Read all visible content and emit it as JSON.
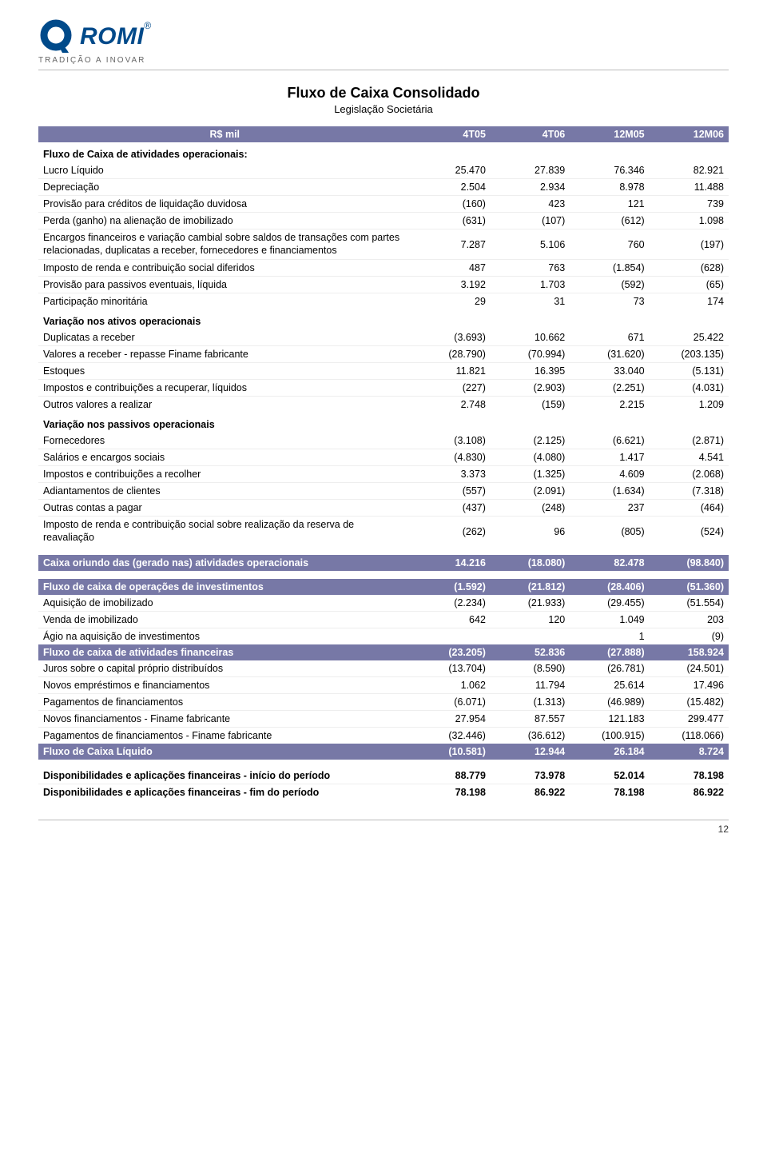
{
  "brand": {
    "logo_text": "ROMI",
    "tagline": "TRADIÇÃO A INOVAR",
    "logo_color": "#004a8a"
  },
  "title": "Fluxo de Caixa Consolidado",
  "subtitle": "Legislação Societária",
  "columns": {
    "unit": "R$ mil",
    "c1": "4T05",
    "c2": "4T06",
    "c3": "12M05",
    "c4": "12M06"
  },
  "table": {
    "band_color": "#7778a6",
    "header_text_color": "#ffffff",
    "font_size": 12.5,
    "row_border_color": "#eeeeee"
  },
  "section_headers": {
    "op_activities": "Fluxo de Caixa de atividades operacionais:",
    "op_assets": "Variação nos ativos operacionais",
    "op_liabilities": "Variação nos passivos operacionais"
  },
  "rows_main": [
    {
      "label": "Lucro Líquido",
      "v": [
        "25.470",
        "27.839",
        "76.346",
        "82.921"
      ]
    },
    {
      "label": "Depreciação",
      "v": [
        "2.504",
        "2.934",
        "8.978",
        "11.488"
      ]
    },
    {
      "label": "Provisão para créditos de liquidação duvidosa",
      "v": [
        "(160)",
        "423",
        "121",
        "739"
      ]
    },
    {
      "label": "Perda (ganho) na alienação de imobilizado",
      "v": [
        "(631)",
        "(107)",
        "(612)",
        "1.098"
      ]
    },
    {
      "label": "Encargos financeiros e variação cambial sobre saldos de transações com partes relacionadas, duplicatas a receber, fornecedores e financiamentos",
      "v": [
        "7.287",
        "5.106",
        "760",
        "(197)"
      ],
      "multiline": true
    },
    {
      "label": "Imposto de renda e contribuição social diferidos",
      "v": [
        "487",
        "763",
        "(1.854)",
        "(628)"
      ]
    },
    {
      "label": "Provisão para passivos eventuais, líquida",
      "v": [
        "3.192",
        "1.703",
        "(592)",
        "(65)"
      ]
    },
    {
      "label": "Participação minoritária",
      "v": [
        "29",
        "31",
        "73",
        "174"
      ]
    }
  ],
  "rows_assets": [
    {
      "label": "Duplicatas a receber",
      "v": [
        "(3.693)",
        "10.662",
        "671",
        "25.422"
      ]
    },
    {
      "label": "Valores a receber - repasse Finame fabricante",
      "v": [
        "(28.790)",
        "(70.994)",
        "(31.620)",
        "(203.135)"
      ]
    },
    {
      "label": "Estoques",
      "v": [
        "11.821",
        "16.395",
        "33.040",
        "(5.131)"
      ]
    },
    {
      "label": "Impostos e contribuições a recuperar, líquidos",
      "v": [
        "(227)",
        "(2.903)",
        "(2.251)",
        "(4.031)"
      ]
    },
    {
      "label": "Outros valores a realizar",
      "v": [
        "2.748",
        "(159)",
        "2.215",
        "1.209"
      ]
    }
  ],
  "rows_liabilities": [
    {
      "label": "Fornecedores",
      "v": [
        "(3.108)",
        "(2.125)",
        "(6.621)",
        "(2.871)"
      ]
    },
    {
      "label": "Salários e encargos sociais",
      "v": [
        "(4.830)",
        "(4.080)",
        "1.417",
        "4.541"
      ]
    },
    {
      "label": "Impostos e contribuições a recolher",
      "v": [
        "3.373",
        "(1.325)",
        "4.609",
        "(2.068)"
      ]
    },
    {
      "label": "Adiantamentos de clientes",
      "v": [
        "(557)",
        "(2.091)",
        "(1.634)",
        "(7.318)"
      ]
    },
    {
      "label": "Outras contas a pagar",
      "v": [
        "(437)",
        "(248)",
        "237",
        "(464)"
      ]
    },
    {
      "label": "Imposto de renda e contribuição social sobre realização da reserva de reavaliação",
      "v": [
        "(262)",
        "96",
        "(805)",
        "(524)"
      ],
      "multiline": true
    }
  ],
  "band_ops": {
    "label": "Caixa oriundo das (gerado nas) atividades operacionais",
    "v": [
      "14.216",
      "(18.080)",
      "82.478",
      "(98.840)"
    ]
  },
  "band_invest": {
    "label": "Fluxo de caixa de operações de investimentos",
    "v": [
      "(1.592)",
      "(21.812)",
      "(28.406)",
      "(51.360)"
    ]
  },
  "rows_invest": [
    {
      "label": "Aquisição de imobilizado",
      "v": [
        "(2.234)",
        "(21.933)",
        "(29.455)",
        "(51.554)"
      ]
    },
    {
      "label": "Venda de imobilizado",
      "v": [
        "642",
        "120",
        "1.049",
        "203"
      ]
    },
    {
      "label": "Ágio na aquisição de investimentos",
      "v": [
        "",
        "",
        "1",
        "(9)"
      ]
    }
  ],
  "band_fin": {
    "label": "Fluxo de caixa de atividades financeiras",
    "v": [
      "(23.205)",
      "52.836",
      "(27.888)",
      "158.924"
    ]
  },
  "rows_fin": [
    {
      "label": "Juros sobre o capital próprio distribuídos",
      "v": [
        "(13.704)",
        "(8.590)",
        "(26.781)",
        "(24.501)"
      ]
    },
    {
      "label": "Novos empréstimos e financiamentos",
      "v": [
        "1.062",
        "11.794",
        "25.614",
        "17.496"
      ]
    },
    {
      "label": "Pagamentos de financiamentos",
      "v": [
        "(6.071)",
        "(1.313)",
        "(46.989)",
        "(15.482)"
      ]
    },
    {
      "label": "Novos financiamentos - Finame fabricante",
      "v": [
        "27.954",
        "87.557",
        "121.183",
        "299.477"
      ]
    },
    {
      "label": "Pagamentos de financiamentos - Finame fabricante",
      "v": [
        "(32.446)",
        "(36.612)",
        "(100.915)",
        "(118.066)"
      ]
    }
  ],
  "band_net": {
    "label": "Fluxo de Caixa Líquido",
    "v": [
      "(10.581)",
      "12.944",
      "26.184",
      "8.724"
    ]
  },
  "rows_disp": [
    {
      "label": "Disponibilidades e aplicações financeiras - início do período",
      "v": [
        "88.779",
        "73.978",
        "52.014",
        "78.198"
      ]
    },
    {
      "label": "Disponibilidades e aplicações financeiras - fim do período",
      "v": [
        "78.198",
        "86.922",
        "78.198",
        "86.922"
      ]
    }
  ],
  "page_number": "12"
}
